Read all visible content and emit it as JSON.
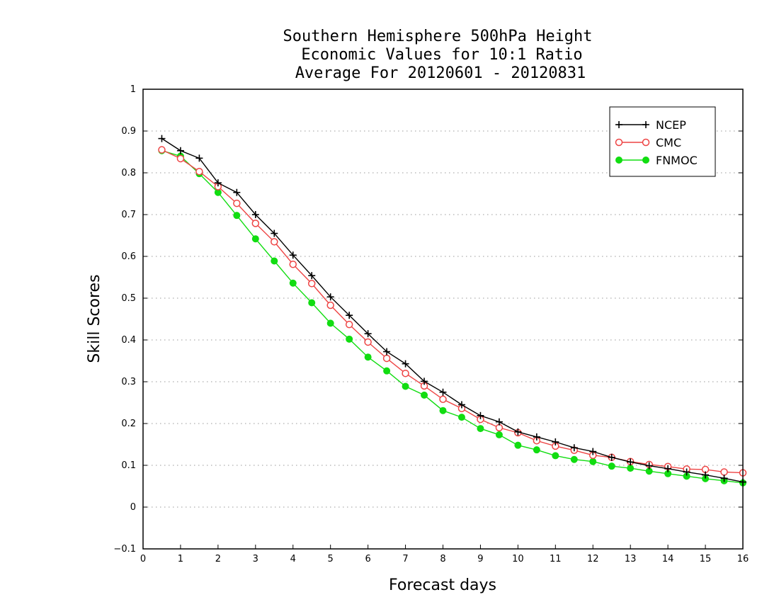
{
  "chart_data": {
    "type": "line",
    "title_lines": [
      "Southern Hemisphere 500hPa Height",
      "Economic Values for 10:1 Ratio",
      "Average For 20120601 - 20120831"
    ],
    "xlabel": "Forecast days",
    "ylabel": "Skill Scores",
    "xlim": [
      0,
      16
    ],
    "ylim": [
      -0.1,
      1
    ],
    "xticks": [
      0,
      1,
      2,
      3,
      4,
      5,
      6,
      7,
      8,
      9,
      10,
      11,
      12,
      13,
      14,
      15,
      16
    ],
    "xtick_labels": [
      "0",
      "1",
      "2",
      "3",
      "4",
      "5",
      "6",
      "7",
      "8",
      "9",
      "10",
      "11",
      "12",
      "13",
      "14",
      "15",
      "16"
    ],
    "yticks": [
      -0.1,
      0,
      0.1,
      0.2,
      0.3,
      0.4,
      0.5,
      0.6,
      0.7,
      0.8,
      0.9,
      1
    ],
    "ytick_labels": [
      "−0.1",
      "0",
      "0.1",
      "0.2",
      "0.3",
      "0.4",
      "0.5",
      "0.6",
      "0.7",
      "0.8",
      "0.9",
      "1"
    ],
    "grid": "horizontal dotted",
    "legend_position": "top-right",
    "x": [
      0.5,
      1,
      1.5,
      2,
      2.5,
      3,
      3.5,
      4,
      4.5,
      5,
      5.5,
      6,
      6.5,
      7,
      7.5,
      8,
      8.5,
      9,
      9.5,
      10,
      10.5,
      11,
      11.5,
      12,
      12.5,
      13,
      13.5,
      14,
      14.5,
      15,
      15.5,
      16
    ],
    "series": [
      {
        "name": "NCEP",
        "color": "#000000",
        "marker": "plus",
        "values": [
          0.882,
          0.853,
          0.835,
          0.776,
          0.753,
          0.7,
          0.655,
          0.603,
          0.554,
          0.503,
          0.459,
          0.415,
          0.372,
          0.343,
          0.301,
          0.275,
          0.245,
          0.219,
          0.204,
          0.18,
          0.168,
          0.156,
          0.142,
          0.133,
          0.119,
          0.108,
          0.099,
          0.092,
          0.084,
          0.077,
          0.069,
          0.06
        ]
      },
      {
        "name": "CMC",
        "color": "#ee4444",
        "marker": "open-circle",
        "values": [
          0.855,
          0.834,
          0.803,
          0.767,
          0.727,
          0.679,
          0.635,
          0.581,
          0.535,
          0.483,
          0.437,
          0.395,
          0.356,
          0.32,
          0.29,
          0.258,
          0.236,
          0.21,
          0.19,
          0.178,
          0.159,
          0.146,
          0.136,
          0.124,
          0.119,
          0.109,
          0.102,
          0.097,
          0.091,
          0.09,
          0.084,
          0.082
        ]
      },
      {
        "name": "FNMOC",
        "color": "#11dd11",
        "marker": "filled-circle",
        "values": [
          0.853,
          0.84,
          0.798,
          0.753,
          0.698,
          0.642,
          0.589,
          0.536,
          0.489,
          0.44,
          0.402,
          0.359,
          0.326,
          0.289,
          0.268,
          0.231,
          0.215,
          0.188,
          0.173,
          0.148,
          0.137,
          0.123,
          0.114,
          0.109,
          0.098,
          0.093,
          0.086,
          0.08,
          0.074,
          0.068,
          0.063,
          0.058
        ]
      }
    ]
  }
}
